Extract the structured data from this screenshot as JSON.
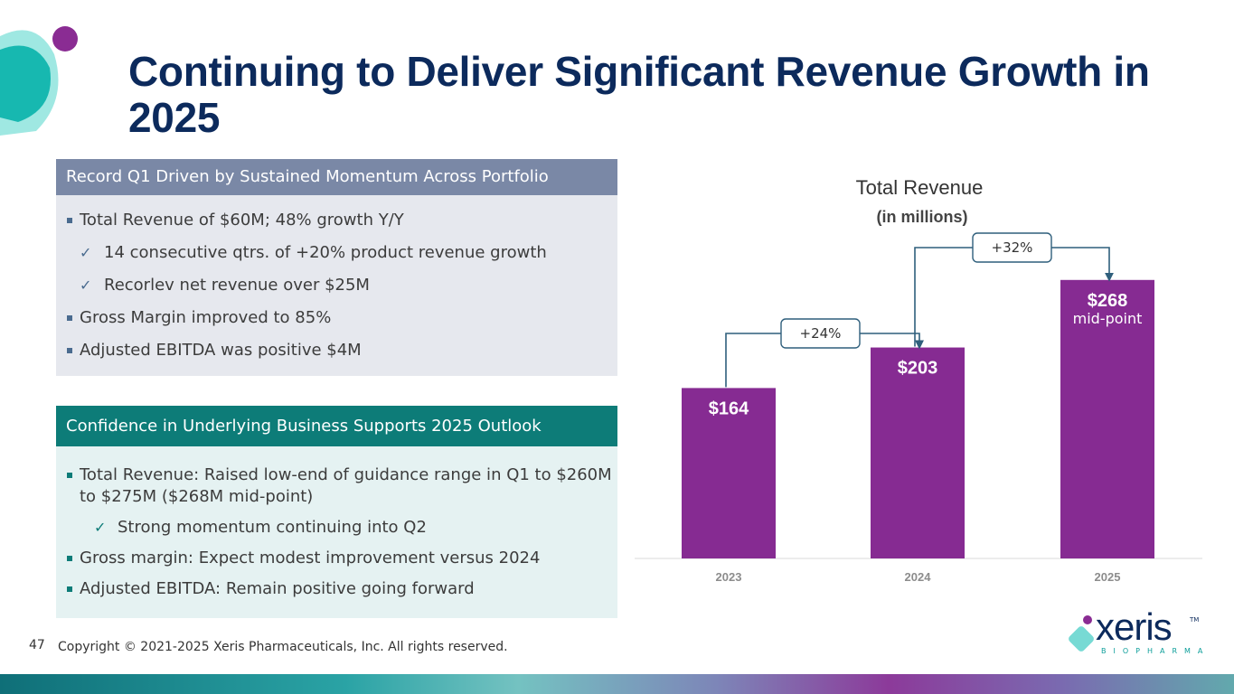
{
  "slide": {
    "title": "Continuing to Deliver Significant Revenue Growth in 2025",
    "page_number": "47",
    "copyright": "Copyright © 2021-2025 Xeris Pharmaceuticals, Inc. All rights reserved."
  },
  "panel1": {
    "header": "Record Q1 Driven by Sustained Momentum Across Portfolio",
    "items": [
      {
        "text": "Total Revenue of $60M; 48% growth Y/Y"
      },
      {
        "text": "14 consecutive qtrs. of +20% product revenue growth"
      },
      {
        "text": "Recorlev net revenue over $25M"
      },
      {
        "text": "Gross Margin improved to 85%"
      },
      {
        "text": "Adjusted EBITDA was positive $4M"
      }
    ]
  },
  "panel2": {
    "header": "Confidence in Underlying Business Supports 2025 Outlook",
    "items": [
      {
        "text": "Total Revenue: Raised low-end of guidance range in Q1 to $260M to $275M ($268M mid-point)"
      },
      {
        "text": "Strong momentum continuing into Q2"
      },
      {
        "text": "Gross margin: Expect modest improvement versus 2024"
      },
      {
        "text": "Adjusted EBITDA: Remain positive going forward"
      }
    ]
  },
  "chart_data": {
    "type": "bar",
    "title": "Total Revenue",
    "subtitle": "(in millions)",
    "categories": [
      "2023",
      "2024",
      "2025"
    ],
    "values": [
      164,
      203,
      268
    ],
    "value_labels": [
      "$164",
      "$203",
      "$268"
    ],
    "value_notes": [
      "",
      "",
      "mid-point"
    ],
    "growth_labels": [
      "+24%",
      "+32%"
    ],
    "ylim": [
      0,
      300
    ],
    "bar_color": "#862b92"
  },
  "logo": {
    "word": "xeris",
    "tm": "TM",
    "subtitle": "BIOPHARMA"
  },
  "colors": {
    "title": "#0c2a5c",
    "panel1_header": "#7a88a6",
    "panel2_header": "#0d7c78",
    "bar": "#862b92",
    "connector": "#2f5f7c"
  }
}
